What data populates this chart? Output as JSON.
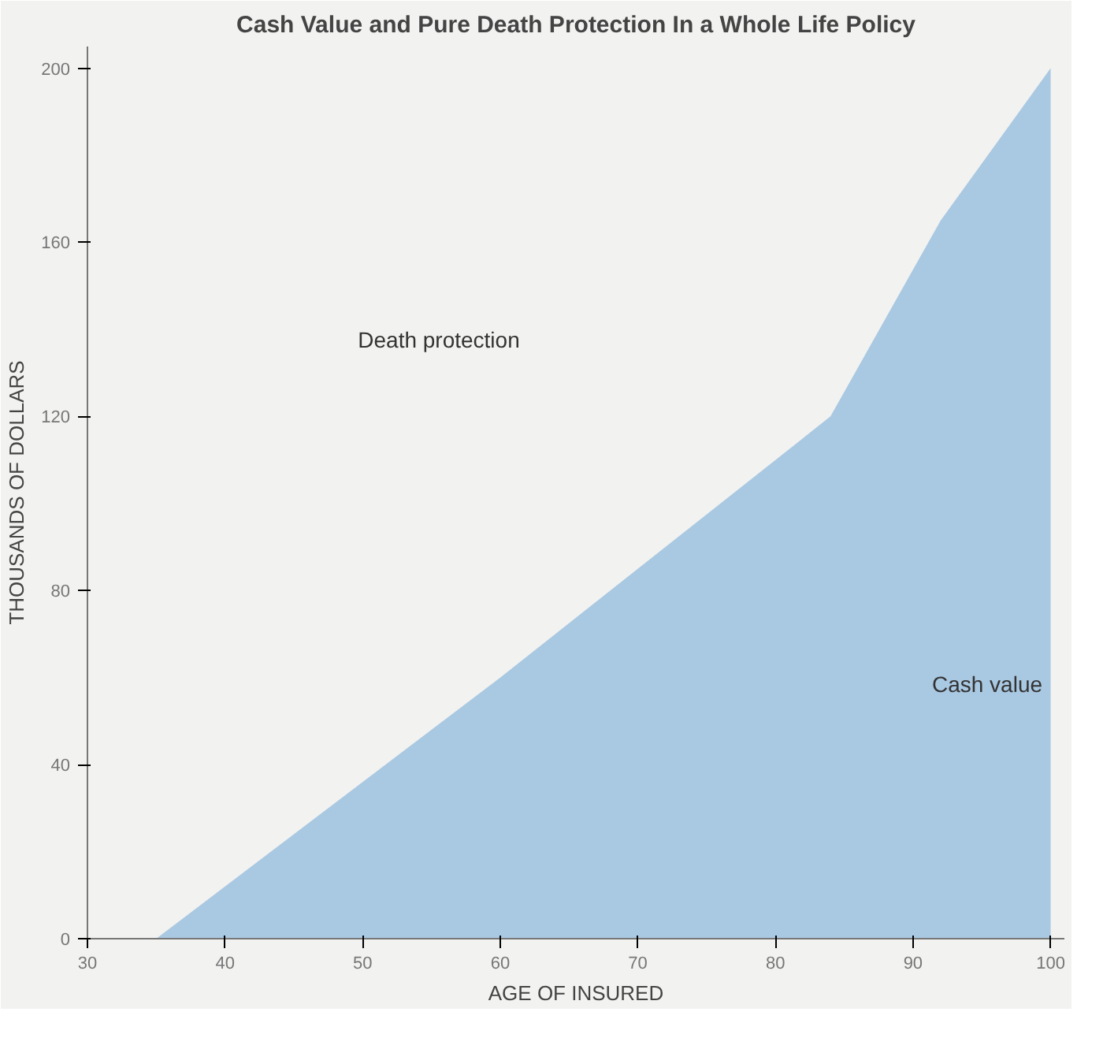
{
  "chart_data": {
    "type": "area",
    "title": "Cash Value and Pure Death Protection In a Whole Life Policy",
    "xlabel": "AGE OF INSURED",
    "ylabel": "THOUSANDS OF DOLLARS",
    "x": [
      35,
      60,
      84,
      92,
      100
    ],
    "series": [
      {
        "color": "#a9c8e2",
        "values": [
          0,
          60,
          120,
          165,
          200
        ]
      }
    ],
    "xlim": [
      30,
      101
    ],
    "ylim": [
      0,
      205
    ],
    "xticks": [
      30,
      40,
      50,
      60,
      70,
      80,
      90,
      100
    ],
    "yticks": [
      0,
      40,
      80,
      120,
      160,
      200
    ],
    "grid": false,
    "annotations": [
      "Death protection",
      "Cash value"
    ]
  }
}
